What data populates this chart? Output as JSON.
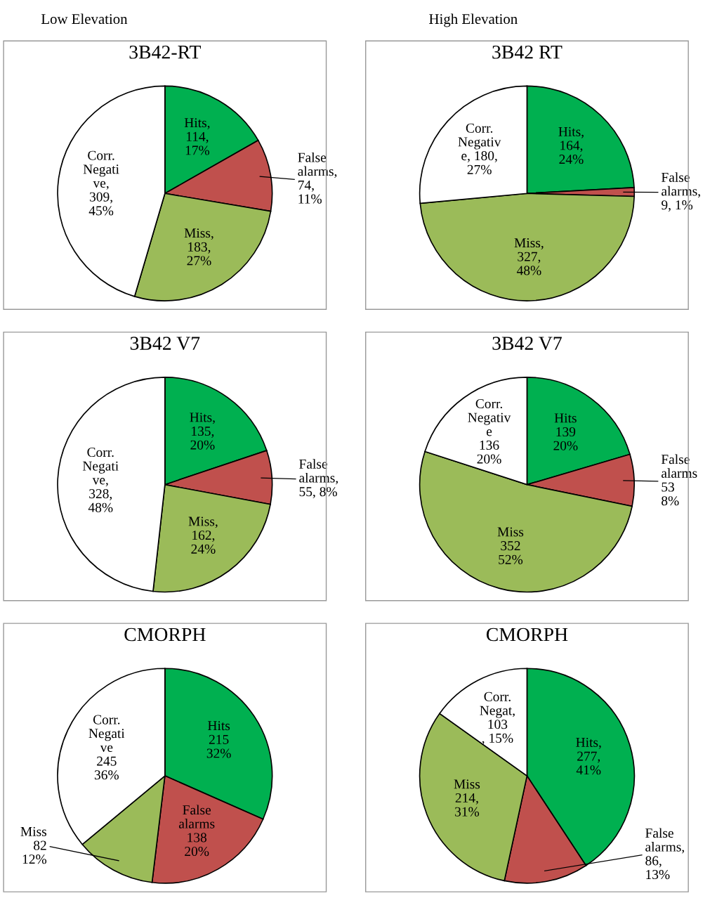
{
  "chart_data": [
    {
      "type": "pie",
      "title": "3B42-RT",
      "annotations": [
        "Low Elevation"
      ],
      "categories": [
        null,
        null,
        null,
        null
      ],
      "values": [
        114,
        74,
        183,
        309
      ],
      "colors": [
        "#00b050",
        "#c0504d",
        "#9bbb59",
        "#ffffff"
      ],
      "value_labels": [
        "Hits,\n114,\n17%",
        "False\nalarms,\n74,\n11%",
        "Miss,\n183,\n27%",
        "Corr.\nNegati\nve,\n309,\n45%"
      ],
      "legend": false
    },
    {
      "type": "pie",
      "title": "3B42 RT",
      "annotations": [
        "High Elevation"
      ],
      "categories": [
        null,
        null,
        null,
        null
      ],
      "values": [
        164,
        9,
        327,
        180
      ],
      "colors": [
        "#00b050",
        "#c0504d",
        "#9bbb59",
        "#ffffff"
      ],
      "value_labels": [
        "Hits,\n164,\n24%",
        "False\nalarms,\n9, 1%",
        "Miss,\n327,\n48%",
        "Corr.\nNegativ\ne, 180,\n27%"
      ],
      "legend": false
    },
    {
      "type": "pie",
      "title": "3B42 V7",
      "categories": [
        null,
        null,
        null,
        null
      ],
      "values": [
        135,
        55,
        162,
        328
      ],
      "colors": [
        "#00b050",
        "#c0504d",
        "#9bbb59",
        "#ffffff"
      ],
      "value_labels": [
        "Hits,\n135,\n20%",
        "False\nalarms,\n55, 8%",
        "Miss,\n162,\n24%",
        "Corr.\nNegati\nve,\n328,\n48%"
      ],
      "legend": false
    },
    {
      "type": "pie",
      "title": "3B42 V7",
      "categories": [
        null,
        null,
        null,
        null
      ],
      "values": [
        139,
        53,
        352,
        136
      ],
      "colors": [
        "#00b050",
        "#c0504d",
        "#9bbb59",
        "#ffffff"
      ],
      "value_labels": [
        "Hits\n139\n20%",
        "False\nalarms\n53\n8%",
        "Miss\n352\n52%",
        "Corr.\nNegativ\ne\n136\n20%"
      ],
      "legend": false
    },
    {
      "type": "pie",
      "title": "CMORPH",
      "categories": [
        null,
        null,
        null,
        null
      ],
      "values": [
        215,
        138,
        82,
        245
      ],
      "colors": [
        "#00b050",
        "#c0504d",
        "#9bbb59",
        "#ffffff"
      ],
      "value_labels": [
        "Hits\n215\n32%",
        "False\nalarms\n138\n20%",
        "Miss\n82\n12%",
        "Corr.\nNegati\nve\n245\n36%"
      ],
      "legend": false
    },
    {
      "type": "pie",
      "title": "CMORPH",
      "categories": [
        null,
        null,
        null,
        null
      ],
      "values": [
        277,
        86,
        214,
        103
      ],
      "colors": [
        "#00b050",
        "#c0504d",
        "#9bbb59",
        "#ffffff"
      ],
      "value_labels": [
        "Hits,\n277,\n41%",
        "False\nalarms,\n86,\n13%",
        "Miss\n214,\n31%",
        "Corr.\nNegat,\n103\n, 15%"
      ],
      "legend": false
    }
  ]
}
